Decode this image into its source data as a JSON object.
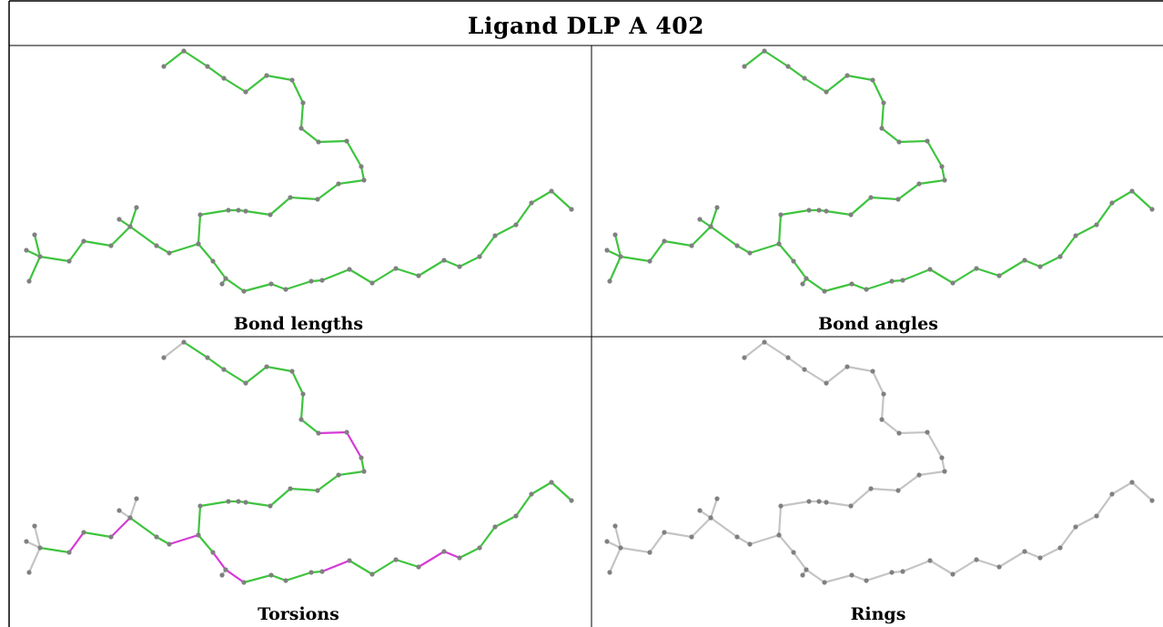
{
  "title": "Ligand DLP A 402",
  "colors": {
    "ok": "#3ec43e",
    "outlier": "#d63ad6",
    "neutral": "#c4c4c4",
    "atom": "#808080"
  },
  "panels": [
    {
      "label": "Bond lengths",
      "coloring": "bonds-green"
    },
    {
      "label": "Bond angles",
      "coloring": "bonds-green"
    },
    {
      "label": "Torsions",
      "coloring": "torsion-outliers-magenta"
    },
    {
      "label": "Rings",
      "coloring": "none"
    }
  ]
}
